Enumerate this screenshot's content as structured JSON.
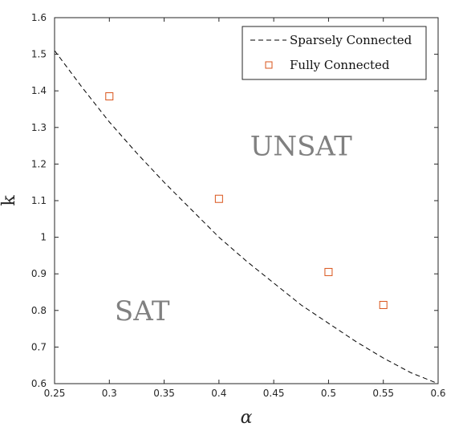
{
  "chart_data": {
    "type": "scatter",
    "title": "",
    "xlabel": "α",
    "ylabel": "k",
    "xlim": [
      0.25,
      0.6
    ],
    "ylim": [
      0.6,
      1.6
    ],
    "xticks": [
      0.25,
      0.3,
      0.35,
      0.4,
      0.45,
      0.5,
      0.55,
      0.6
    ],
    "xtick_labels": [
      "0.25",
      "0.3",
      "0.35",
      "0.4",
      "0.45",
      "0.5",
      "0.55",
      "0.6"
    ],
    "yticks": [
      0.6,
      0.7,
      0.8,
      0.9,
      1.0,
      1.1,
      1.2,
      1.3,
      1.4,
      1.5,
      1.6
    ],
    "ytick_labels": [
      "0.6",
      "0.7",
      "0.8",
      "0.9",
      "1",
      "1.1",
      "1.2",
      "1.3",
      "1.4",
      "1.5",
      "1.6"
    ],
    "grid": false,
    "legend_position": "top-right",
    "series": [
      {
        "name": "Sparsely Connected",
        "kind": "line",
        "style": "dashed",
        "color": "#000000",
        "x": [
          0.25,
          0.275,
          0.3,
          0.325,
          0.35,
          0.375,
          0.4,
          0.425,
          0.45,
          0.475,
          0.5,
          0.525,
          0.55,
          0.575,
          0.6
        ],
        "y": [
          1.51,
          1.41,
          1.315,
          1.23,
          1.15,
          1.075,
          1.0,
          0.935,
          0.875,
          0.815,
          0.765,
          0.715,
          0.67,
          0.63,
          0.6
        ]
      },
      {
        "name": "Fully Connected",
        "kind": "scatter",
        "marker": "square",
        "color": "#d95319",
        "x": [
          0.3,
          0.4,
          0.5,
          0.55
        ],
        "y": [
          1.385,
          1.105,
          0.905,
          0.815
        ]
      }
    ],
    "annotations": [
      {
        "text": "UNSAT",
        "x": 0.475,
        "y": 1.25
      },
      {
        "text": "SAT",
        "x": 0.33,
        "y": 0.8
      }
    ]
  }
}
